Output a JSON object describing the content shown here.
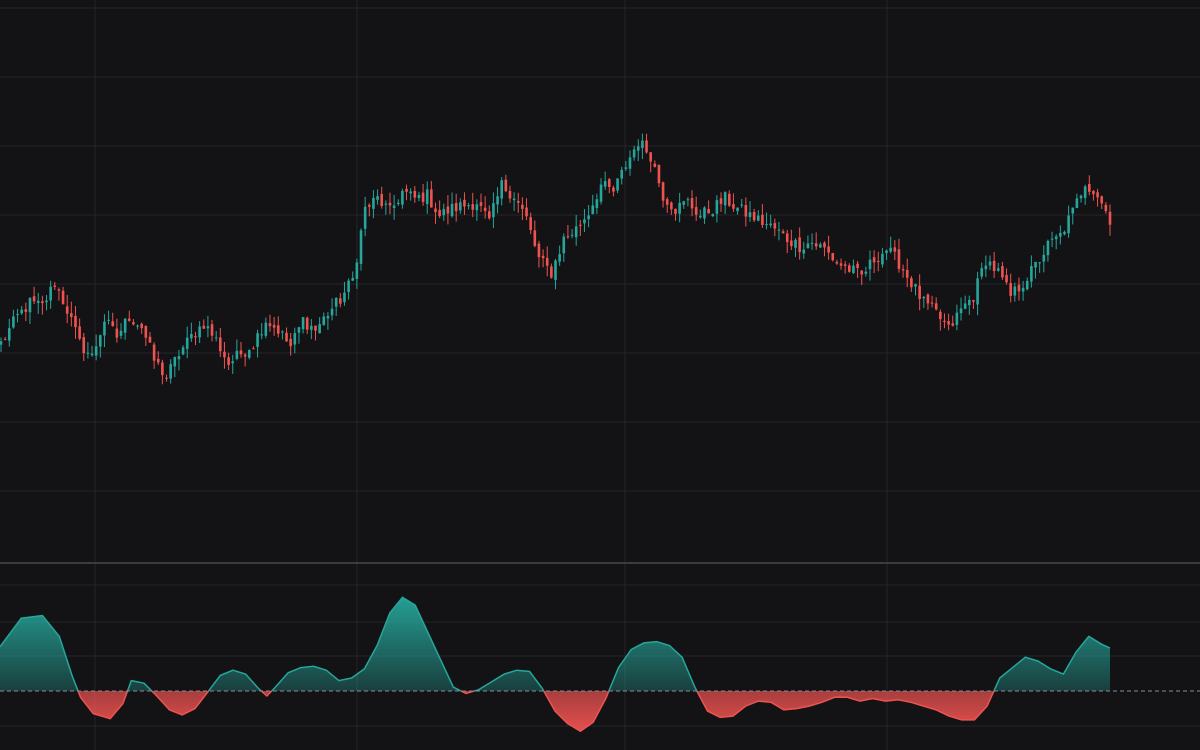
{
  "chart_data": [
    {
      "type": "candlestick",
      "panel": "price",
      "title": "",
      "xlabel": "",
      "ylabel": "",
      "grid": true,
      "colors": {
        "up": "#26a69a",
        "down": "#ef5350",
        "background": "#131316",
        "grid": "#25252b"
      },
      "ylim": [
        0,
        100
      ],
      "ohlc_anchor_closes": [
        [
          0,
          48
        ],
        [
          4,
          56
        ],
        [
          7,
          60
        ],
        [
          10,
          59
        ],
        [
          13,
          66
        ],
        [
          16,
          58
        ],
        [
          19,
          48
        ],
        [
          22,
          44
        ],
        [
          25,
          55
        ],
        [
          28,
          50
        ],
        [
          31,
          56
        ],
        [
          34,
          53
        ],
        [
          37,
          43
        ],
        [
          40,
          38
        ],
        [
          43,
          45
        ],
        [
          46,
          50
        ],
        [
          49,
          54
        ],
        [
          52,
          49
        ],
        [
          55,
          42
        ],
        [
          58,
          45
        ],
        [
          61,
          48
        ],
        [
          64,
          55
        ],
        [
          67,
          52
        ],
        [
          70,
          47
        ],
        [
          73,
          55
        ],
        [
          76,
          52
        ],
        [
          79,
          57
        ],
        [
          82,
          61
        ],
        [
          85,
          67
        ],
        [
          88,
          88
        ],
        [
          91,
          91
        ],
        [
          94,
          87
        ],
        [
          97,
          93
        ],
        [
          100,
          91
        ],
        [
          103,
          92
        ],
        [
          106,
          86
        ],
        [
          109,
          88
        ],
        [
          112,
          89
        ],
        [
          115,
          90
        ],
        [
          118,
          84
        ],
        [
          121,
          95
        ],
        [
          124,
          92
        ],
        [
          127,
          85
        ],
        [
          130,
          73
        ],
        [
          133,
          69
        ],
        [
          136,
          79
        ],
        [
          139,
          82
        ],
        [
          142,
          87
        ],
        [
          145,
          95
        ],
        [
          148,
          93
        ],
        [
          151,
          101
        ],
        [
          154,
          108
        ],
        [
          157,
          104
        ],
        [
          160,
          92
        ],
        [
          163,
          88
        ],
        [
          166,
          90
        ],
        [
          169,
          86
        ],
        [
          172,
          88
        ],
        [
          175,
          91
        ],
        [
          178,
          88
        ],
        [
          181,
          86
        ],
        [
          184,
          84
        ],
        [
          187,
          82
        ],
        [
          190,
          79
        ],
        [
          193,
          77
        ],
        [
          196,
          78
        ],
        [
          199,
          76
        ],
        [
          202,
          72
        ],
        [
          205,
          70
        ],
        [
          208,
          68
        ],
        [
          211,
          73
        ],
        [
          214,
          76
        ],
        [
          217,
          72
        ],
        [
          220,
          66
        ],
        [
          223,
          60
        ],
        [
          226,
          57
        ],
        [
          229,
          52
        ],
        [
          232,
          58
        ],
        [
          235,
          62
        ],
        [
          238,
          73
        ],
        [
          241,
          69
        ],
        [
          244,
          62
        ],
        [
          247,
          66
        ],
        [
          250,
          71
        ],
        [
          253,
          77
        ],
        [
          256,
          80
        ],
        [
          259,
          87
        ],
        [
          262,
          96
        ],
        [
          265,
          92
        ],
        [
          268,
          85
        ]
      ]
    },
    {
      "type": "area",
      "panel": "oscillator",
      "title": "",
      "xlabel": "",
      "ylabel": "",
      "baseline": 0,
      "baseline_style": "dashed",
      "ylim": [
        -3.5,
        7
      ],
      "colors": {
        "positive": "#26a69a",
        "negative": "#ef5350"
      },
      "points": [
        [
          0,
          3.4
        ],
        [
          5,
          5.6
        ],
        [
          10,
          5.8
        ],
        [
          14,
          4.2
        ],
        [
          17,
          1.2
        ],
        [
          19,
          -0.5
        ],
        [
          22,
          -1.8
        ],
        [
          26,
          -2.2
        ],
        [
          29,
          -1.0
        ],
        [
          31,
          0.8
        ],
        [
          34,
          0.6
        ],
        [
          37,
          -0.4
        ],
        [
          40,
          -1.5
        ],
        [
          43,
          -1.9
        ],
        [
          46,
          -1.4
        ],
        [
          49,
          -0.1
        ],
        [
          52,
          1.2
        ],
        [
          55,
          1.6
        ],
        [
          58,
          1.3
        ],
        [
          61,
          0.2
        ],
        [
          63,
          -0.4
        ],
        [
          65,
          0.3
        ],
        [
          68,
          1.4
        ],
        [
          71,
          1.8
        ],
        [
          74,
          1.9
        ],
        [
          77,
          1.6
        ],
        [
          80,
          0.8
        ],
        [
          83,
          1.0
        ],
        [
          86,
          1.7
        ],
        [
          89,
          3.5
        ],
        [
          92,
          6.0
        ],
        [
          95,
          7.2
        ],
        [
          98,
          6.6
        ],
        [
          101,
          4.5
        ],
        [
          104,
          2.4
        ],
        [
          107,
          0.3
        ],
        [
          110,
          -0.2
        ],
        [
          113,
          0.1
        ],
        [
          116,
          0.7
        ],
        [
          119,
          1.3
        ],
        [
          122,
          1.6
        ],
        [
          125,
          1.5
        ],
        [
          128,
          0.2
        ],
        [
          131,
          -1.6
        ],
        [
          134,
          -2.6
        ],
        [
          137,
          -3.2
        ],
        [
          140,
          -2.5
        ],
        [
          143,
          -0.6
        ],
        [
          146,
          1.8
        ],
        [
          149,
          3.2
        ],
        [
          152,
          3.7
        ],
        [
          155,
          3.8
        ],
        [
          158,
          3.5
        ],
        [
          161,
          2.6
        ],
        [
          164,
          0.3
        ],
        [
          167,
          -1.6
        ],
        [
          170,
          -2.1
        ],
        [
          173,
          -2.0
        ],
        [
          176,
          -1.2
        ],
        [
          179,
          -0.8
        ],
        [
          182,
          -0.9
        ],
        [
          185,
          -1.5
        ],
        [
          188,
          -1.4
        ],
        [
          191,
          -1.2
        ],
        [
          194,
          -0.9
        ],
        [
          197,
          -0.5
        ],
        [
          200,
          -0.5
        ],
        [
          203,
          -0.8
        ],
        [
          206,
          -0.6
        ],
        [
          209,
          -0.8
        ],
        [
          212,
          -0.7
        ],
        [
          215,
          -0.9
        ],
        [
          218,
          -1.2
        ],
        [
          221,
          -1.5
        ],
        [
          224,
          -2.0
        ],
        [
          227,
          -2.3
        ],
        [
          230,
          -2.3
        ],
        [
          233,
          -1.2
        ],
        [
          236,
          1.0
        ],
        [
          239,
          1.8
        ],
        [
          242,
          2.6
        ],
        [
          245,
          2.3
        ],
        [
          248,
          1.7
        ],
        [
          251,
          1.3
        ],
        [
          254,
          3.0
        ],
        [
          257,
          4.2
        ],
        [
          260,
          3.6
        ],
        [
          262,
          3.3
        ]
      ]
    }
  ]
}
